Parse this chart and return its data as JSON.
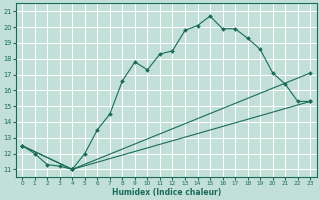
{
  "xlabel": "Humidex (Indice chaleur)",
  "xlim": [
    -0.5,
    23.5
  ],
  "ylim": [
    10.5,
    21.5
  ],
  "yticks": [
    11,
    12,
    13,
    14,
    15,
    16,
    17,
    18,
    19,
    20,
    21
  ],
  "xticks": [
    0,
    1,
    2,
    3,
    4,
    5,
    6,
    7,
    8,
    9,
    10,
    11,
    12,
    13,
    14,
    15,
    16,
    17,
    18,
    19,
    20,
    21,
    22,
    23
  ],
  "bg_color": "#c2e0d8",
  "line_color": "#1a6b5a",
  "line1_x": [
    0,
    1,
    2,
    3,
    4,
    5,
    6,
    7,
    8,
    9,
    10,
    11,
    12,
    13,
    14,
    15,
    16,
    17,
    18,
    19,
    20,
    21,
    22,
    23
  ],
  "line1_y": [
    12.5,
    12.0,
    11.3,
    11.2,
    11.0,
    12.0,
    13.5,
    14.5,
    16.6,
    17.8,
    17.3,
    18.3,
    18.5,
    19.8,
    20.1,
    20.7,
    19.9,
    19.9,
    19.3,
    18.6,
    17.1,
    16.4,
    15.3,
    15.3
  ],
  "line2_x": [
    0,
    4,
    23
  ],
  "line2_y": [
    12.5,
    11.0,
    17.1
  ],
  "line3_x": [
    0,
    4,
    23
  ],
  "line3_y": [
    12.5,
    11.0,
    15.3
  ]
}
